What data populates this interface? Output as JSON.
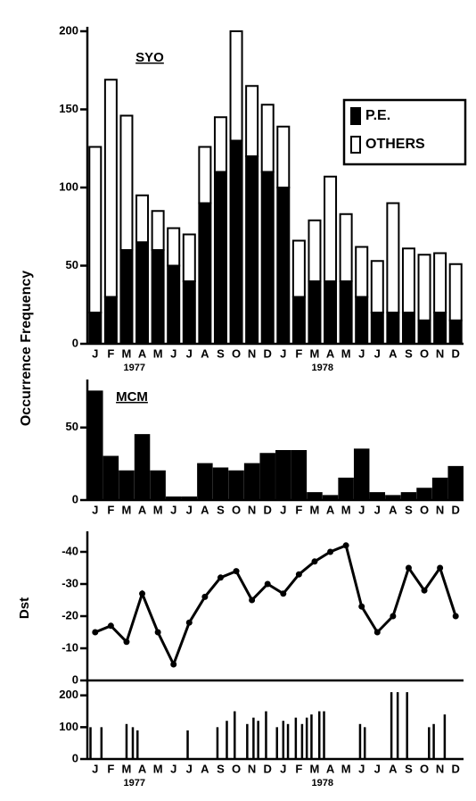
{
  "chart_data": [
    {
      "type": "stacked-bar",
      "title": "SYO",
      "ylabel": "Occurrence Frequency",
      "categories": [
        "J",
        "F",
        "M",
        "A",
        "M",
        "J",
        "J",
        "A",
        "S",
        "O",
        "N",
        "D",
        "J",
        "F",
        "M",
        "A",
        "M",
        "J",
        "J",
        "A",
        "S",
        "O",
        "N",
        "D"
      ],
      "years": [
        "1977",
        "1978"
      ],
      "series": [
        {
          "name": "P.E.",
          "color": "#000000",
          "values": [
            20,
            30,
            60,
            65,
            60,
            50,
            40,
            90,
            110,
            130,
            120,
            110,
            100,
            30,
            40,
            40,
            40,
            30,
            20,
            20,
            20,
            15,
            20,
            15
          ]
        },
        {
          "name": "OTHERS",
          "color": "#ffffff",
          "values": [
            106,
            139,
            86,
            30,
            25,
            24,
            30,
            36,
            35,
            70,
            45,
            43,
            39,
            36,
            39,
            67,
            43,
            32,
            33,
            70,
            41,
            42,
            38,
            36
          ]
        }
      ],
      "ylim": [
        0,
        200
      ],
      "yticks": [
        0,
        50,
        100,
        150,
        200
      ],
      "legend": "upper right"
    },
    {
      "type": "bar",
      "title": "MCM",
      "color": "#000000",
      "categories": [
        "J",
        "F",
        "M",
        "A",
        "M",
        "J",
        "J",
        "A",
        "S",
        "O",
        "N",
        "D",
        "J",
        "F",
        "M",
        "A",
        "M",
        "J",
        "J",
        "A",
        "S",
        "O",
        "N",
        "D"
      ],
      "values": [
        75,
        30,
        20,
        45,
        20,
        2,
        2,
        25,
        22,
        20,
        25,
        32,
        34,
        34,
        5,
        3,
        15,
        35,
        5,
        3,
        5,
        8,
        15,
        23
      ],
      "ylim": [
        0,
        80
      ],
      "yticks": [
        0,
        50
      ]
    },
    {
      "type": "line",
      "ylabel": "Dst",
      "color": "#000000",
      "categories": [
        "J",
        "F",
        "M",
        "A",
        "M",
        "J",
        "J",
        "A",
        "S",
        "O",
        "N",
        "D",
        "J",
        "F",
        "M",
        "A",
        "M",
        "J",
        "J",
        "A",
        "S",
        "O",
        "N",
        "D"
      ],
      "values": [
        -15,
        -17,
        -12,
        -27,
        -15,
        -5,
        -18,
        -26,
        -32,
        -34,
        -25,
        -30,
        -27,
        -33,
        -37,
        -40,
        -42,
        -23,
        -15,
        -20,
        -35,
        -28,
        -35,
        -20
      ],
      "ylim": [
        0,
        -45
      ],
      "yticks": [
        0,
        -10,
        -20,
        -30,
        -40
      ]
    },
    {
      "type": "spike",
      "color": "#000000",
      "categories": [
        "J",
        "F",
        "M",
        "A",
        "M",
        "J",
        "J",
        "A",
        "S",
        "O",
        "N",
        "D",
        "J",
        "F",
        "M",
        "A",
        "M",
        "J",
        "J",
        "A",
        "S",
        "O",
        "N",
        "D"
      ],
      "years": [
        "1977",
        "1978"
      ],
      "x": [
        0.2,
        0.9,
        2.5,
        2.9,
        3.2,
        6.4,
        8.3,
        8.9,
        9.4,
        10.2,
        10.6,
        10.9,
        11.4,
        12.1,
        12.5,
        12.8,
        13.3,
        13.7,
        14.0,
        14.3,
        14.8,
        15.1,
        17.4,
        17.7,
        19.4,
        19.8,
        20.4,
        21.8,
        22.1,
        22.8
      ],
      "values": [
        100,
        100,
        110,
        100,
        90,
        90,
        100,
        120,
        150,
        110,
        130,
        120,
        150,
        100,
        120,
        110,
        130,
        110,
        130,
        140,
        150,
        150,
        110,
        100,
        210,
        210,
        210,
        100,
        110,
        140
      ],
      "xlim": [
        0,
        24
      ],
      "ylim": [
        0,
        230
      ],
      "yticks": [
        0,
        100,
        200
      ]
    }
  ]
}
